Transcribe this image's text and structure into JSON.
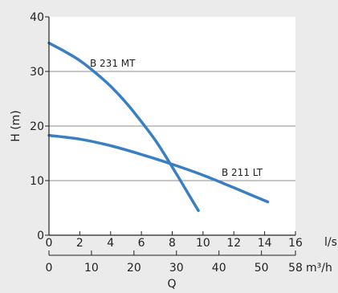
{
  "chart_data": {
    "type": "line",
    "title": "",
    "ylabel": "H (m)",
    "xlabel": "Q",
    "primary_x_unit": "l/s",
    "secondary_x_unit": "m³/h",
    "xlim": [
      0,
      16
    ],
    "ylim": [
      0,
      40
    ],
    "x_ticks": [
      0,
      2,
      4,
      6,
      8,
      10,
      12,
      14,
      16
    ],
    "y_ticks": [
      0,
      10,
      20,
      30,
      40
    ],
    "secondary_x_ticks": [
      0,
      10,
      20,
      30,
      40,
      50,
      58
    ],
    "secondary_x_lim": [
      0,
      58
    ],
    "grid": "horizontal",
    "legend": "none",
    "series": [
      {
        "name": "B 231 MT",
        "color": "#3a7fc1",
        "x": [
          0,
          1,
          2,
          3,
          4,
          5,
          6,
          7,
          8,
          9,
          9.7
        ],
        "y": [
          35.2,
          33.7,
          32.0,
          29.8,
          27.3,
          24.3,
          20.8,
          17.0,
          12.5,
          7.8,
          4.5
        ]
      },
      {
        "name": "B 211 LT",
        "color": "#3a7fc1",
        "x": [
          0,
          2,
          4,
          6,
          8,
          10,
          12,
          14.2
        ],
        "y": [
          18.3,
          17.6,
          16.4,
          14.8,
          13.0,
          11.0,
          8.7,
          6.1
        ]
      }
    ]
  }
}
